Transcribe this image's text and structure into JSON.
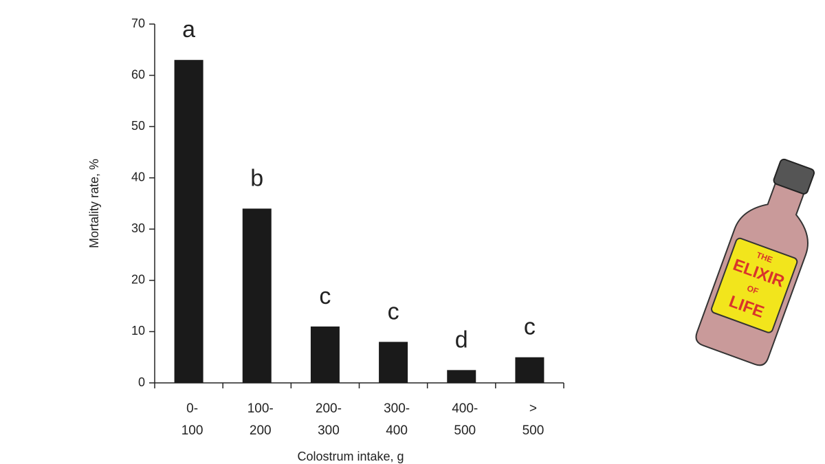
{
  "chart_data": {
    "type": "bar",
    "y_label": "Mortality rate, %",
    "x_label": "Colostrum intake, g",
    "categories": [
      [
        "0-",
        "100"
      ],
      [
        "100-",
        "200"
      ],
      [
        "200-",
        "300"
      ],
      [
        "300-",
        "400"
      ],
      [
        "400-",
        "500"
      ],
      [
        ">",
        "500"
      ]
    ],
    "values": [
      63,
      34,
      11,
      8,
      2.5,
      5
    ],
    "letters": [
      "a",
      "b",
      "c",
      "c",
      "d",
      "c"
    ],
    "color": "#1a1a1a",
    "ylim": [
      0,
      70
    ],
    "yticks": [
      0,
      10,
      20,
      30,
      40,
      50,
      60,
      70
    ]
  },
  "illustration": {
    "label_lines": [
      "THE",
      "ELIXIR",
      "OF",
      "LIFE"
    ]
  }
}
